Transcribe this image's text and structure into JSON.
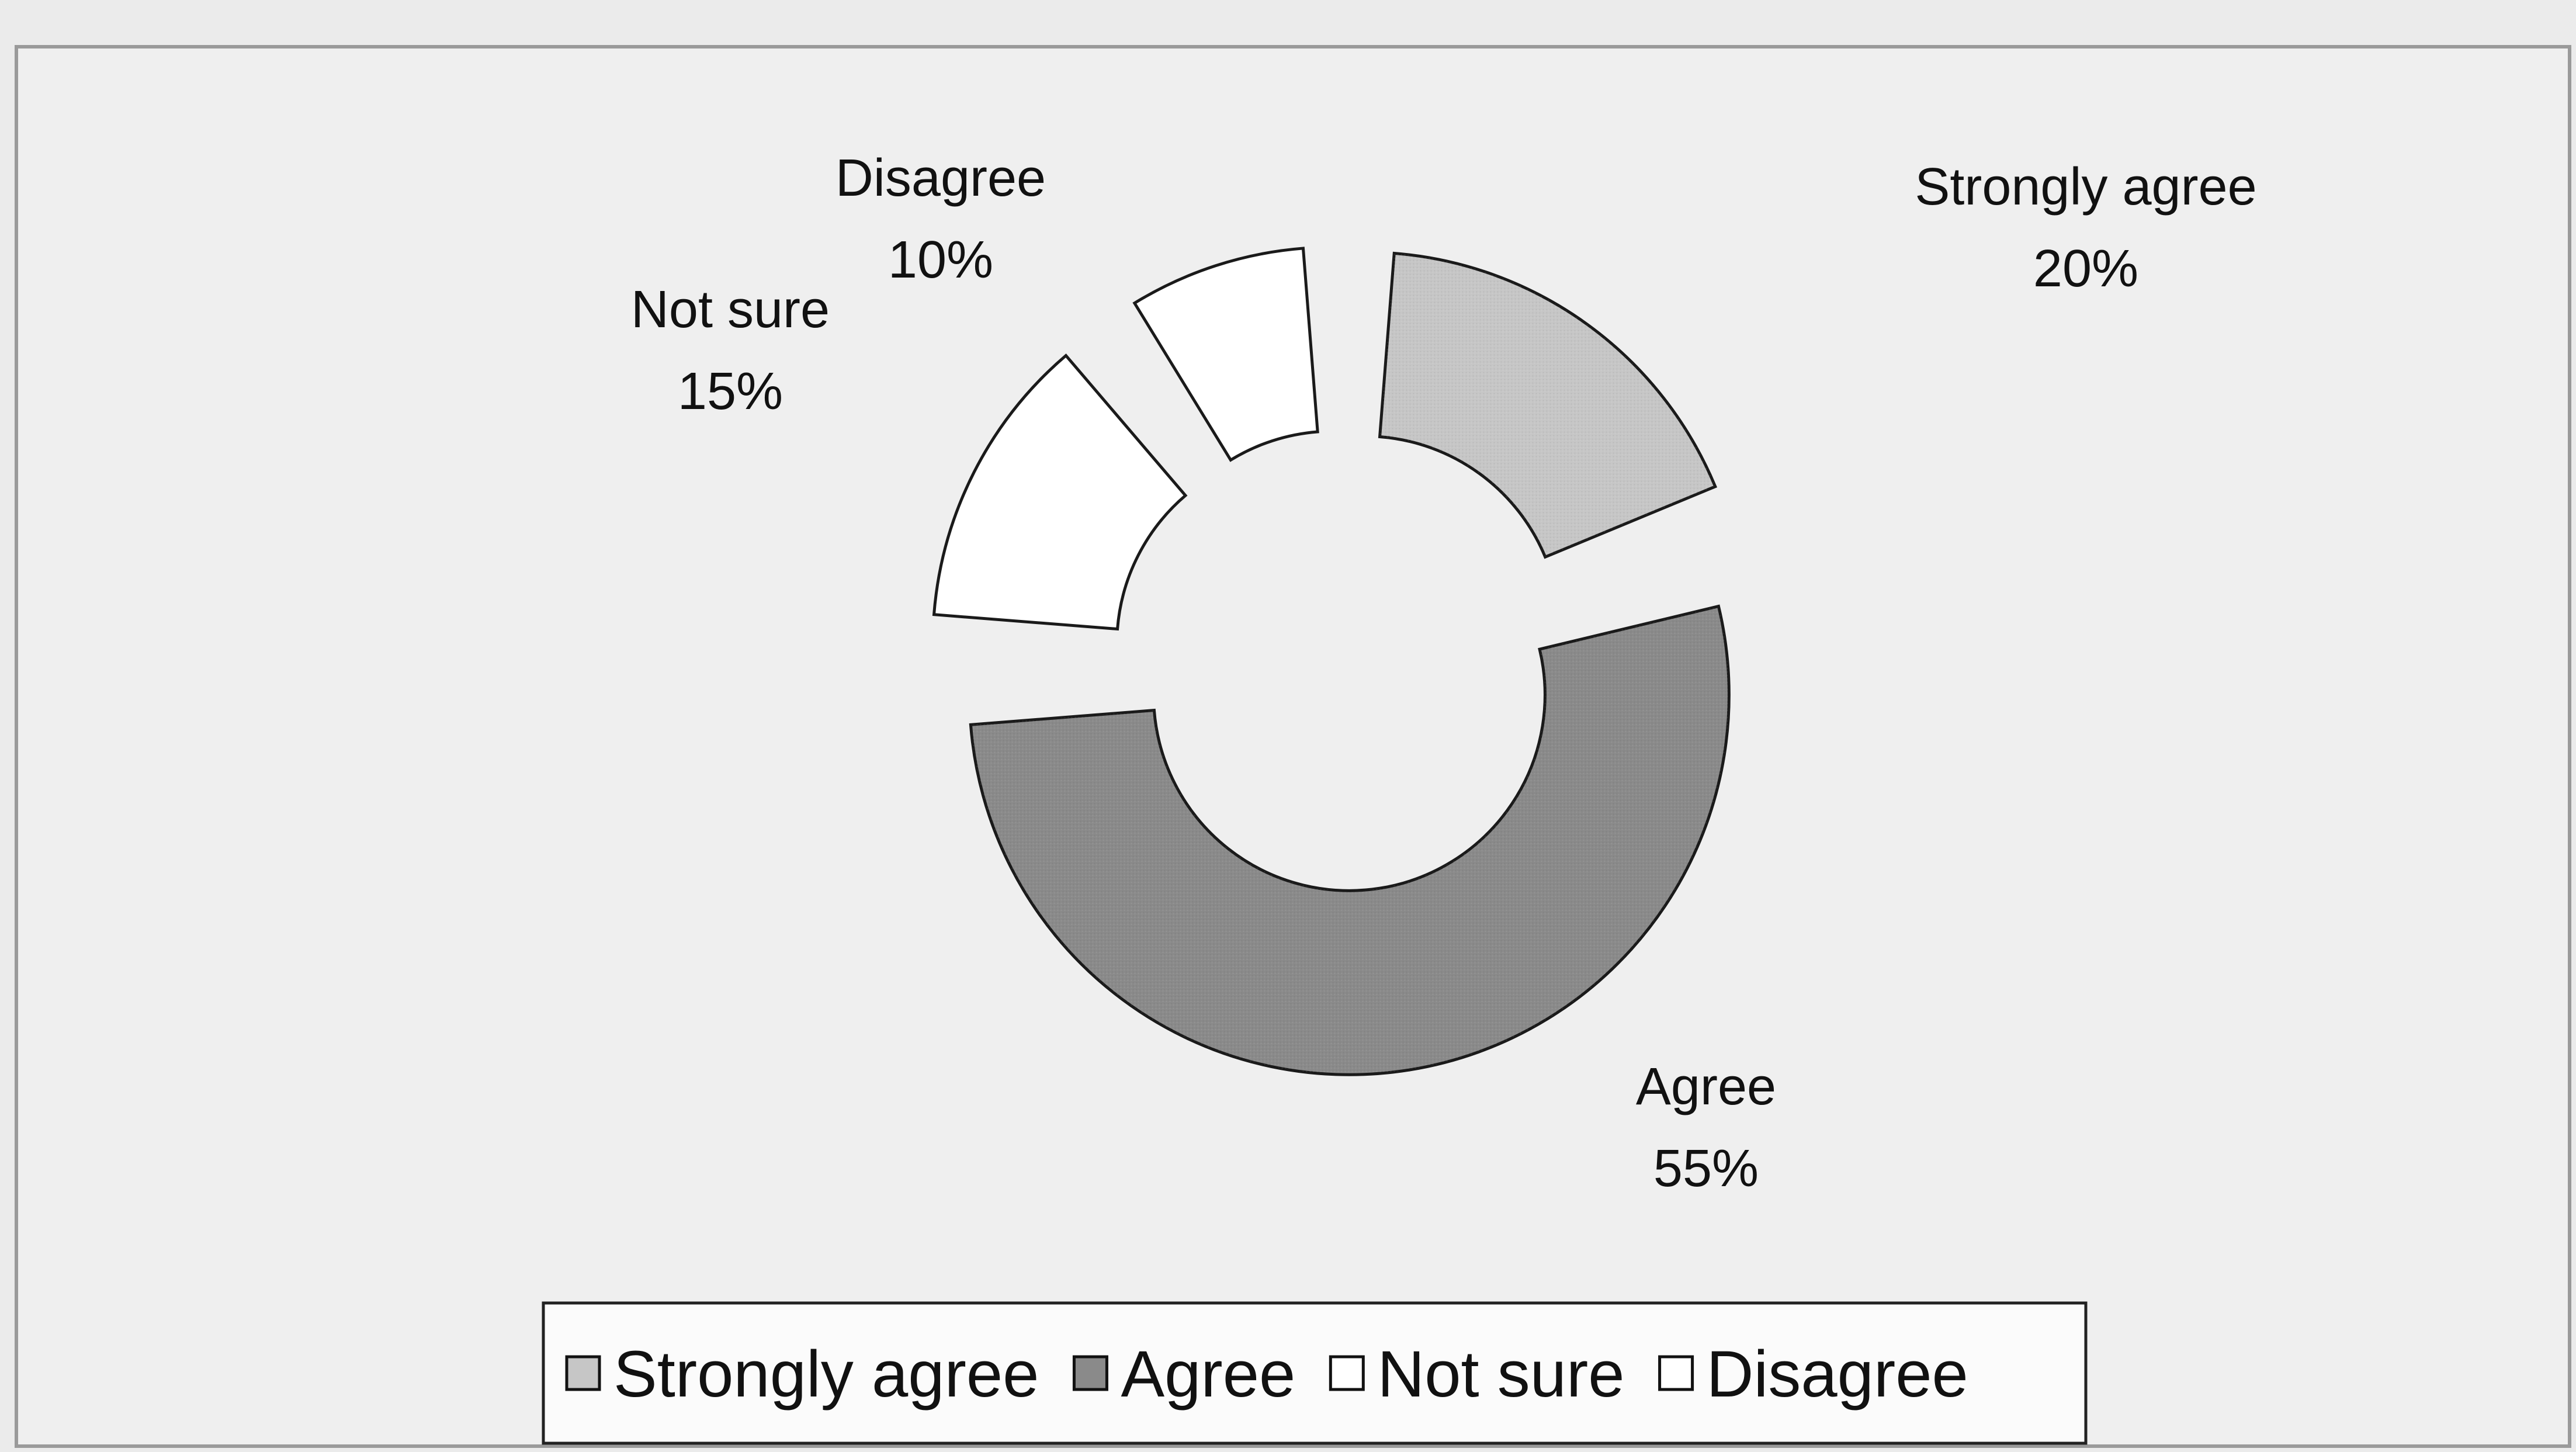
{
  "chart_data": {
    "type": "pie",
    "variant": "exploded doughnut",
    "labels": [
      "Strongly agree",
      "Agree",
      "Not sure",
      "Disagree"
    ],
    "values": [
      20,
      55,
      15,
      10
    ],
    "value_labels": [
      "20%",
      "55%",
      "15%",
      "10%"
    ],
    "colors": [
      "#c6c6c6",
      "#8a8a8a",
      "#ffffff",
      "#ffffff"
    ],
    "legend": {
      "position": "bottom",
      "items": [
        "Strongly agree",
        "Agree",
        "Not sure",
        "Disagree"
      ]
    },
    "title": ""
  }
}
